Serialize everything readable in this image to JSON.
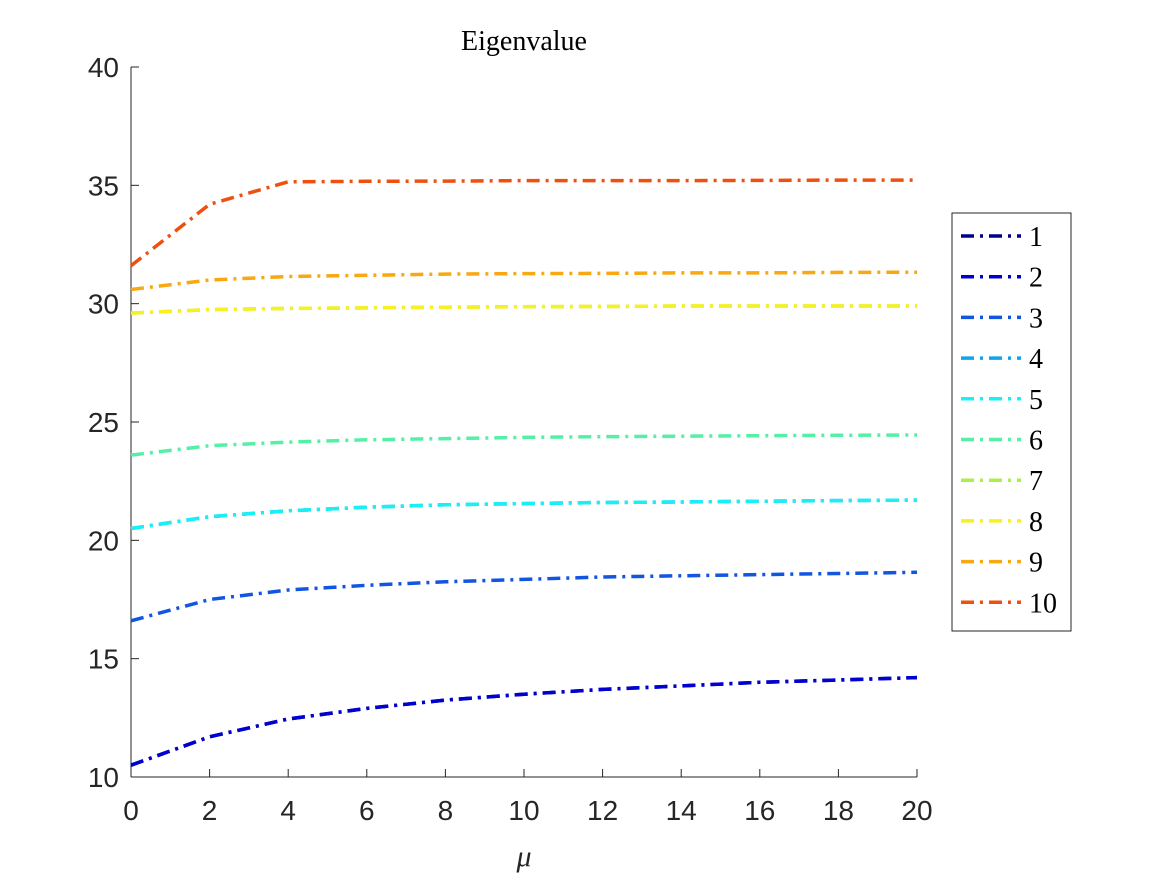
{
  "chart_data": {
    "type": "line",
    "title": "Eigenvalue",
    "xlabel": "μ",
    "ylabel": "",
    "xlim": [
      0,
      20
    ],
    "ylim": [
      10,
      40
    ],
    "xticks": [
      0,
      2,
      4,
      6,
      8,
      10,
      12,
      14,
      16,
      18,
      20
    ],
    "yticks": [
      10,
      15,
      20,
      25,
      30,
      35,
      40
    ],
    "grid": false,
    "legend_position": "right",
    "line_style": "dash-dot",
    "x": [
      0,
      2,
      4,
      6,
      8,
      10,
      12,
      14,
      16,
      18,
      20
    ],
    "series": [
      {
        "name": "1",
        "color": "#00008b",
        "values": [
          10.5,
          11.7,
          12.45,
          12.9,
          13.25,
          13.5,
          13.7,
          13.85,
          14.0,
          14.1,
          14.2
        ]
      },
      {
        "name": "2",
        "color": "#0000d0",
        "values": [
          10.5,
          11.7,
          12.45,
          12.9,
          13.25,
          13.5,
          13.7,
          13.85,
          14.0,
          14.1,
          14.2
        ]
      },
      {
        "name": "3",
        "color": "#1155e0",
        "values": [
          16.6,
          17.5,
          17.9,
          18.1,
          18.25,
          18.35,
          18.45,
          18.5,
          18.55,
          18.6,
          18.65
        ]
      },
      {
        "name": "4",
        "color": "#10a5ea",
        "values": [
          20.5,
          21.0,
          21.25,
          21.4,
          21.5,
          21.55,
          21.6,
          21.62,
          21.65,
          21.68,
          21.7
        ]
      },
      {
        "name": "5",
        "color": "#18f0f5",
        "values": [
          20.5,
          21.0,
          21.25,
          21.4,
          21.5,
          21.55,
          21.6,
          21.62,
          21.65,
          21.68,
          21.7
        ]
      },
      {
        "name": "6",
        "color": "#55f0a5",
        "values": [
          23.6,
          24.0,
          24.15,
          24.25,
          24.3,
          24.35,
          24.38,
          24.4,
          24.42,
          24.44,
          24.45
        ]
      },
      {
        "name": "7",
        "color": "#aaf04a",
        "values": [
          29.6,
          29.75,
          29.8,
          29.82,
          29.85,
          29.87,
          29.88,
          29.9,
          29.9,
          29.9,
          29.9
        ]
      },
      {
        "name": "8",
        "color": "#f8f020",
        "values": [
          29.6,
          29.75,
          29.8,
          29.82,
          29.85,
          29.87,
          29.88,
          29.9,
          29.9,
          29.9,
          29.9
        ]
      },
      {
        "name": "9",
        "color": "#f8a810",
        "values": [
          30.6,
          31.0,
          31.15,
          31.2,
          31.25,
          31.27,
          31.28,
          31.3,
          31.3,
          31.32,
          31.33
        ]
      },
      {
        "name": "10",
        "color": "#ee5010",
        "values": [
          31.6,
          34.2,
          35.15,
          35.17,
          35.18,
          35.2,
          35.2,
          35.2,
          35.21,
          35.22,
          35.22
        ]
      }
    ]
  }
}
